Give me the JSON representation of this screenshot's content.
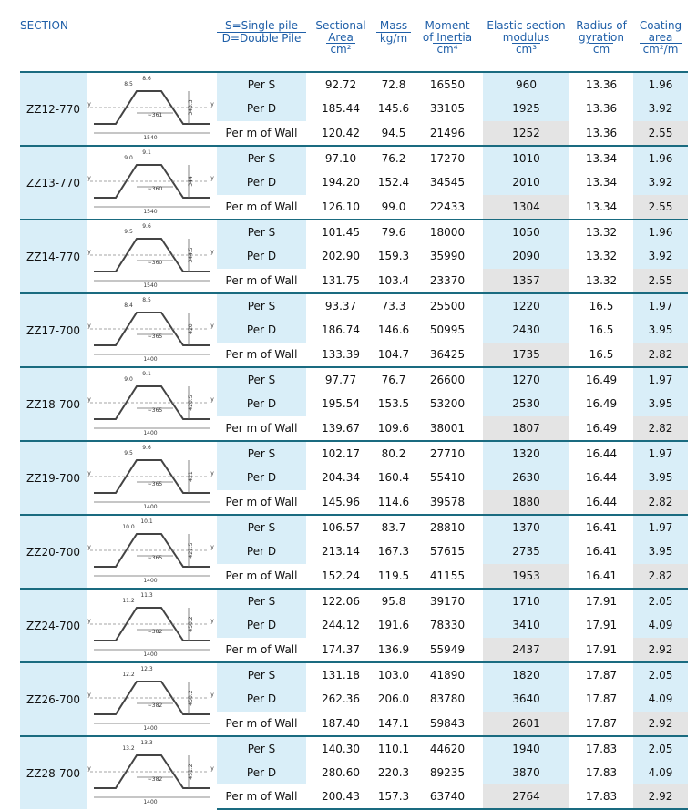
{
  "header": {
    "columns": [
      {
        "lines": [
          "SECTION"
        ]
      },
      {
        "lines": [
          "S=Single pile",
          "D=Double Pile"
        ]
      },
      {
        "lines": [
          "Sectional",
          "Area"
        ],
        "unit": "cm²"
      },
      {
        "lines": [
          "Mass"
        ],
        "unit": "kg/m"
      },
      {
        "lines": [
          "Moment",
          "of Inertia"
        ],
        "unit": "cm⁴"
      },
      {
        "lines": [
          "Elastic section",
          "modulus"
        ],
        "unit": "cm³"
      },
      {
        "lines": [
          "Radius of",
          "gyration"
        ],
        "unit": "cm"
      },
      {
        "lines": [
          "Coating",
          "area"
        ],
        "unit": "cm²/m"
      }
    ]
  },
  "sketch_axis_label": "y",
  "sections": [
    {
      "name": "ZZ12-770",
      "sketch": {
        "t_flange": "8.5",
        "t_web": "8.6",
        "width": "~361",
        "height": "343.3",
        "total": "1540"
      },
      "rows": [
        [
          "Per S",
          "92.72",
          "72.8",
          "16550",
          "960",
          "13.36",
          "1.96"
        ],
        [
          "Per D",
          "185.44",
          "145.6",
          "33105",
          "1925",
          "13.36",
          "3.92"
        ],
        [
          "Per m of Wall",
          "120.42",
          "94.5",
          "21496",
          "1252",
          "13.36",
          "2.55"
        ]
      ]
    },
    {
      "name": "ZZ13-770",
      "sketch": {
        "t_flange": "9.0",
        "t_web": "9.1",
        "width": "~360",
        "height": "344",
        "total": "1540"
      },
      "rows": [
        [
          "Per S",
          "97.10",
          "76.2",
          "17270",
          "1010",
          "13.34",
          "1.96"
        ],
        [
          "Per D",
          "194.20",
          "152.4",
          "34545",
          "2010",
          "13.34",
          "3.92"
        ],
        [
          "Per m of Wall",
          "126.10",
          "99.0",
          "22433",
          "1304",
          "13.34",
          "2.55"
        ]
      ]
    },
    {
      "name": "ZZ14-770",
      "sketch": {
        "t_flange": "9.5",
        "t_web": "9.6",
        "width": "~360",
        "height": "344.5",
        "total": "1540"
      },
      "rows": [
        [
          "Per S",
          "101.45",
          "79.6",
          "18000",
          "1050",
          "13.32",
          "1.96"
        ],
        [
          "Per D",
          "202.90",
          "159.3",
          "35990",
          "2090",
          "13.32",
          "3.92"
        ],
        [
          "Per m of Wall",
          "131.75",
          "103.4",
          "23370",
          "1357",
          "13.32",
          "2.55"
        ]
      ]
    },
    {
      "name": "ZZ17-700",
      "sketch": {
        "t_flange": "8.4",
        "t_web": "8.5",
        "width": "~365",
        "height": "420",
        "total": "1400"
      },
      "rows": [
        [
          "Per S",
          "93.37",
          "73.3",
          "25500",
          "1220",
          "16.5",
          "1.97"
        ],
        [
          "Per D",
          "186.74",
          "146.6",
          "50995",
          "2430",
          "16.5",
          "3.95"
        ],
        [
          "Per m of Wall",
          "133.39",
          "104.7",
          "36425",
          "1735",
          "16.5",
          "2.82"
        ]
      ]
    },
    {
      "name": "ZZ18-700",
      "sketch": {
        "t_flange": "9.0",
        "t_web": "9.1",
        "width": "~365",
        "height": "420.5",
        "total": "1400"
      },
      "rows": [
        [
          "Per S",
          "97.77",
          "76.7",
          "26600",
          "1270",
          "16.49",
          "1.97"
        ],
        [
          "Per D",
          "195.54",
          "153.5",
          "53200",
          "2530",
          "16.49",
          "3.95"
        ],
        [
          "Per m of Wall",
          "139.67",
          "109.6",
          "38001",
          "1807",
          "16.49",
          "2.82"
        ]
      ]
    },
    {
      "name": "ZZ19-700",
      "sketch": {
        "t_flange": "9.5",
        "t_web": "9.6",
        "width": "~365",
        "height": "421",
        "total": "1400"
      },
      "rows": [
        [
          "Per S",
          "102.17",
          "80.2",
          "27710",
          "1320",
          "16.44",
          "1.97"
        ],
        [
          "Per D",
          "204.34",
          "160.4",
          "55410",
          "2630",
          "16.44",
          "3.95"
        ],
        [
          "Per m of Wall",
          "145.96",
          "114.6",
          "39578",
          "1880",
          "16.44",
          "2.82"
        ]
      ]
    },
    {
      "name": "ZZ20-700",
      "sketch": {
        "t_flange": "10.0",
        "t_web": "10.1",
        "width": "~365",
        "height": "421.5",
        "total": "1400"
      },
      "rows": [
        [
          "Per S",
          "106.57",
          "83.7",
          "28810",
          "1370",
          "16.41",
          "1.97"
        ],
        [
          "Per D",
          "213.14",
          "167.3",
          "57615",
          "2735",
          "16.41",
          "3.95"
        ],
        [
          "Per m of Wall",
          "152.24",
          "119.5",
          "41155",
          "1953",
          "16.41",
          "2.82"
        ]
      ]
    },
    {
      "name": "ZZ24-700",
      "sketch": {
        "t_flange": "11.2",
        "t_web": "11.3",
        "width": "~382",
        "height": "450.2",
        "total": "1400"
      },
      "rows": [
        [
          "Per S",
          "122.06",
          "95.8",
          "39170",
          "1710",
          "17.91",
          "2.05"
        ],
        [
          "Per D",
          "244.12",
          "191.6",
          "78330",
          "3410",
          "17.91",
          "4.09"
        ],
        [
          "Per m of Wall",
          "174.37",
          "136.9",
          "55949",
          "2437",
          "17.91",
          "2.92"
        ]
      ]
    },
    {
      "name": "ZZ26-700",
      "sketch": {
        "t_flange": "12.2",
        "t_web": "12.3",
        "width": "~382",
        "height": "450.2",
        "total": "1400"
      },
      "rows": [
        [
          "Per S",
          "131.18",
          "103.0",
          "41890",
          "1820",
          "17.87",
          "2.05"
        ],
        [
          "Per D",
          "262.36",
          "206.0",
          "83780",
          "3640",
          "17.87",
          "4.09"
        ],
        [
          "Per m of Wall",
          "187.40",
          "147.1",
          "59843",
          "2601",
          "17.87",
          "2.92"
        ]
      ]
    },
    {
      "name": "ZZ28-700",
      "sketch": {
        "t_flange": "13.2",
        "t_web": "13.3",
        "width": "~382",
        "height": "451.2",
        "total": "1400"
      },
      "rows": [
        [
          "Per S",
          "140.30",
          "110.1",
          "44620",
          "1940",
          "17.83",
          "2.05"
        ],
        [
          "Per D",
          "280.60",
          "220.3",
          "89235",
          "3870",
          "17.83",
          "4.09"
        ],
        [
          "Per m of Wall",
          "200.43",
          "157.3",
          "63740",
          "2764",
          "17.83",
          "2.92"
        ]
      ]
    }
  ]
}
